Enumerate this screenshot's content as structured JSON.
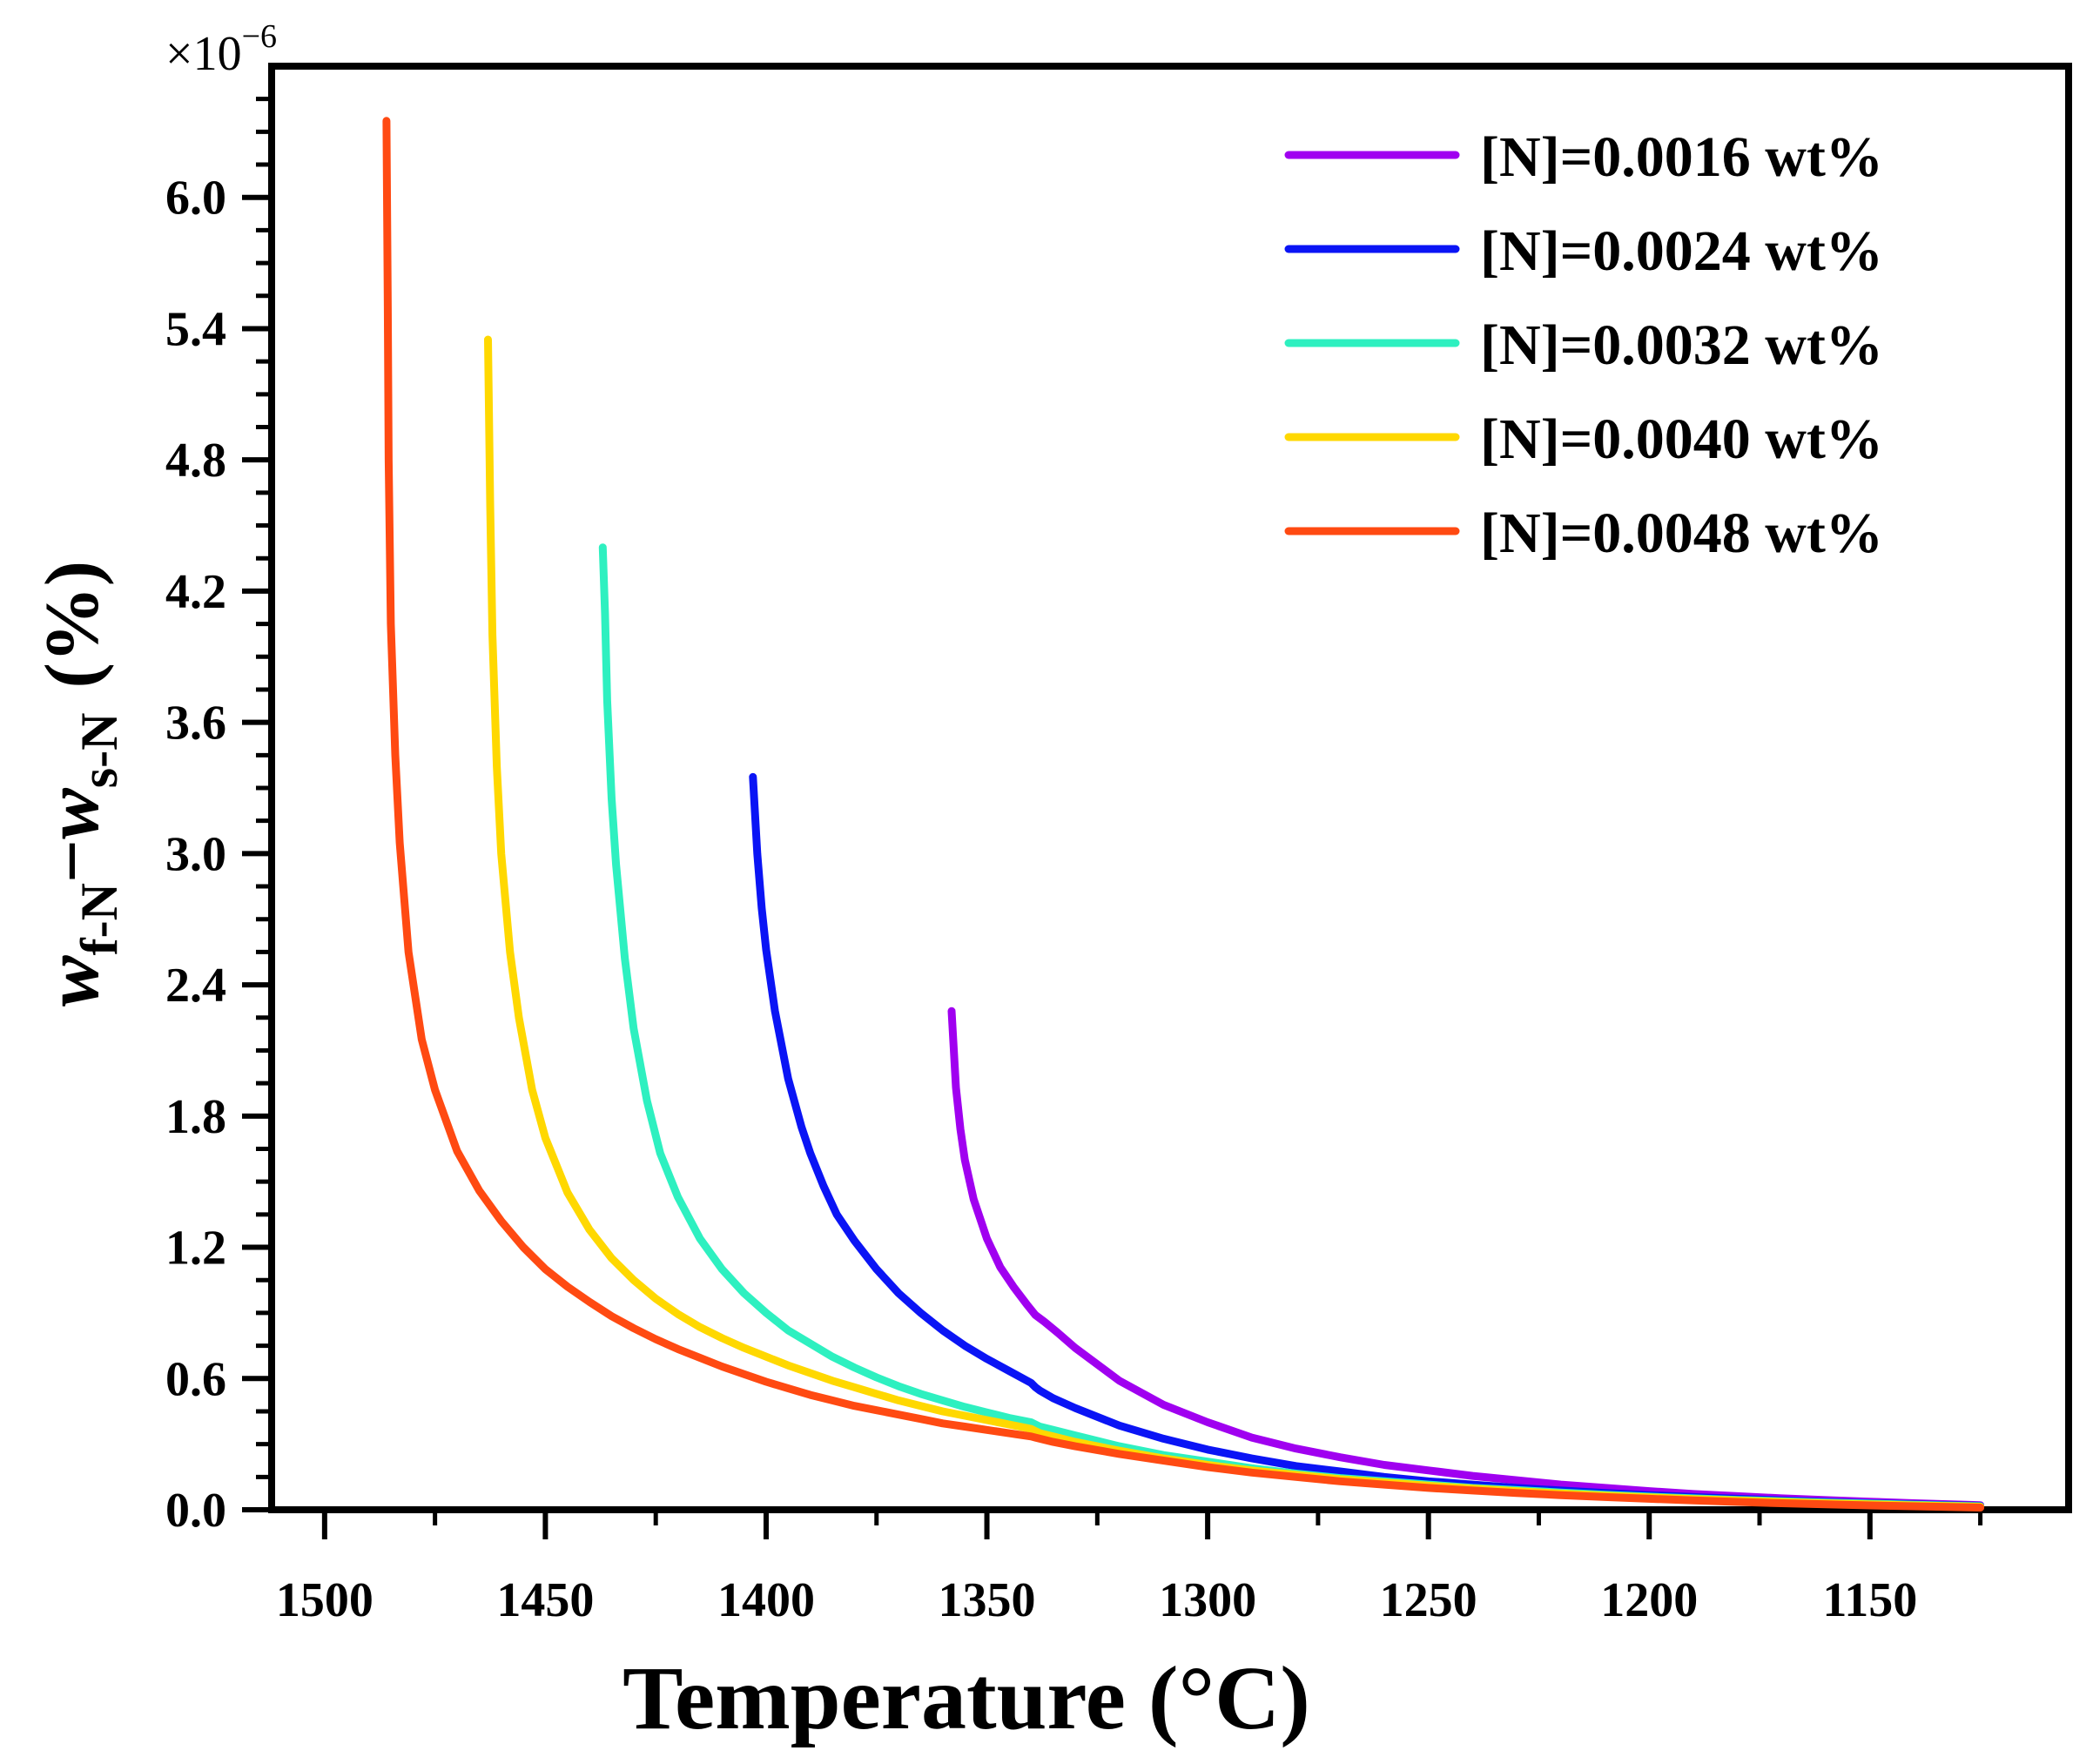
{
  "chart_data": {
    "type": "line",
    "title": "",
    "xlabel": "Temperature (°C)",
    "ylabel": {
      "var1": "w",
      "sub1": "f-N",
      "minus": "−",
      "var2": "w",
      "sub2": "s-N",
      "unit": "(%)"
    },
    "y_multiplier": {
      "base": "×10",
      "exponent": "−6"
    },
    "xlim": [
      1512,
      1105
    ],
    "ylim": [
      0,
      6.6
    ],
    "x_ticks": [
      1500,
      1450,
      1400,
      1350,
      1300,
      1250,
      1200,
      1150
    ],
    "x_tick_labels": [
      "1500",
      "1450",
      "1400",
      "1350",
      "1300",
      "1250",
      "1200",
      "1150"
    ],
    "y_ticks": [
      0,
      0.6,
      1.2,
      1.8,
      2.4,
      3.0,
      3.6,
      4.2,
      4.8,
      5.4,
      6.0
    ],
    "y_tick_labels": [
      "0.0",
      "0.6",
      "1.2",
      "1.8",
      "2.4",
      "3.0",
      "3.6",
      "4.2",
      "4.8",
      "5.4",
      "6.0"
    ],
    "legend_position": "top-right",
    "series": [
      {
        "name": "[N]=0.0016 wt%",
        "color": "#A000F0",
        "x": [
          1358,
          1357,
          1356,
          1355,
          1353,
          1350,
          1347,
          1344,
          1341,
          1339,
          1337,
          1334,
          1330,
          1320,
          1310,
          1300,
          1290,
          1280,
          1270,
          1260,
          1250,
          1240,
          1230,
          1220,
          1210,
          1200,
          1190,
          1180,
          1170,
          1160,
          1150,
          1140,
          1130,
          1125
        ],
        "y": [
          2.28,
          1.93,
          1.74,
          1.6,
          1.42,
          1.24,
          1.11,
          1.02,
          0.94,
          0.89,
          0.86,
          0.81,
          0.74,
          0.59,
          0.48,
          0.4,
          0.33,
          0.28,
          0.24,
          0.205,
          0.18,
          0.155,
          0.135,
          0.115,
          0.1,
          0.085,
          0.072,
          0.062,
          0.052,
          0.044,
          0.037,
          0.03,
          0.024,
          0.021
        ]
      },
      {
        "name": "[N]=0.0024 wt%",
        "color": "#0A14F5",
        "x": [
          1403,
          1402,
          1401,
          1400,
          1398,
          1395,
          1392,
          1390,
          1387,
          1384,
          1380,
          1375,
          1370,
          1365,
          1360,
          1355,
          1350,
          1345,
          1340,
          1339,
          1338,
          1335,
          1330,
          1320,
          1310,
          1300,
          1290,
          1280,
          1270,
          1260,
          1250,
          1240,
          1230,
          1220,
          1210,
          1200,
          1190,
          1180,
          1170,
          1160,
          1150,
          1140,
          1130,
          1125
        ],
        "y": [
          3.35,
          3.0,
          2.75,
          2.56,
          2.28,
          1.97,
          1.75,
          1.63,
          1.48,
          1.35,
          1.23,
          1.1,
          0.99,
          0.9,
          0.82,
          0.75,
          0.69,
          0.635,
          0.58,
          0.56,
          0.545,
          0.51,
          0.465,
          0.385,
          0.325,
          0.275,
          0.235,
          0.2,
          0.175,
          0.15,
          0.13,
          0.115,
          0.1,
          0.088,
          0.077,
          0.067,
          0.058,
          0.05,
          0.043,
          0.036,
          0.03,
          0.025,
          0.02,
          0.018
        ]
      },
      {
        "name": "[N]=0.0032 wt%",
        "color": "#2EF0C0",
        "x": [
          1437,
          1436.5,
          1436,
          1435,
          1434,
          1432,
          1430,
          1427,
          1424,
          1420,
          1415,
          1410,
          1405,
          1400,
          1395,
          1390,
          1385,
          1380,
          1375,
          1370,
          1365,
          1360,
          1355,
          1350,
          1345,
          1340,
          1339,
          1338,
          1335,
          1330,
          1320,
          1310,
          1300,
          1290,
          1280,
          1270,
          1260,
          1250,
          1240,
          1230,
          1220,
          1210,
          1200,
          1190,
          1180,
          1170,
          1160,
          1150,
          1140,
          1130,
          1125
        ],
        "y": [
          4.4,
          4.1,
          3.7,
          3.25,
          2.95,
          2.52,
          2.2,
          1.87,
          1.63,
          1.43,
          1.24,
          1.1,
          0.99,
          0.9,
          0.82,
          0.76,
          0.7,
          0.65,
          0.605,
          0.565,
          0.53,
          0.5,
          0.47,
          0.445,
          0.42,
          0.4,
          0.39,
          0.38,
          0.365,
          0.34,
          0.29,
          0.25,
          0.22,
          0.19,
          0.165,
          0.145,
          0.13,
          0.115,
          0.1,
          0.09,
          0.079,
          0.069,
          0.06,
          0.052,
          0.045,
          0.039,
          0.033,
          0.028,
          0.023,
          0.018,
          0.016
        ]
      },
      {
        "name": "[N]=0.0040 wt%",
        "color": "#FFD800",
        "x": [
          1463,
          1462.5,
          1462,
          1461,
          1460,
          1458,
          1456,
          1453,
          1450,
          1445,
          1440,
          1435,
          1430,
          1425,
          1420,
          1415,
          1410,
          1405,
          1400,
          1395,
          1390,
          1385,
          1380,
          1375,
          1370,
          1365,
          1360,
          1355,
          1350,
          1345,
          1340,
          1339,
          1338,
          1335,
          1330,
          1320,
          1310,
          1300,
          1290,
          1280,
          1270,
          1260,
          1250,
          1240,
          1230,
          1220,
          1210,
          1200,
          1190,
          1180,
          1170,
          1160,
          1150,
          1140,
          1130,
          1125
        ],
        "y": [
          5.35,
          4.6,
          4.0,
          3.4,
          3.0,
          2.55,
          2.25,
          1.92,
          1.7,
          1.45,
          1.28,
          1.15,
          1.05,
          0.965,
          0.895,
          0.835,
          0.785,
          0.74,
          0.7,
          0.66,
          0.625,
          0.59,
          0.56,
          0.53,
          0.5,
          0.475,
          0.45,
          0.43,
          0.41,
          0.39,
          0.37,
          0.36,
          0.35,
          0.335,
          0.31,
          0.27,
          0.235,
          0.205,
          0.18,
          0.16,
          0.14,
          0.125,
          0.11,
          0.097,
          0.085,
          0.074,
          0.065,
          0.057,
          0.049,
          0.042,
          0.036,
          0.03,
          0.025,
          0.02,
          0.016,
          0.014
        ]
      },
      {
        "name": "[N]=0.0048 wt%",
        "color": "#FF4A12",
        "x": [
          1486,
          1485.7,
          1485.5,
          1485,
          1484,
          1483,
          1481,
          1478,
          1475,
          1470,
          1465,
          1460,
          1455,
          1450,
          1445,
          1440,
          1435,
          1430,
          1425,
          1420,
          1415,
          1410,
          1405,
          1400,
          1395,
          1390,
          1385,
          1380,
          1375,
          1370,
          1365,
          1360,
          1355,
          1350,
          1345,
          1340,
          1339,
          1338,
          1335,
          1330,
          1320,
          1310,
          1300,
          1290,
          1280,
          1270,
          1260,
          1250,
          1240,
          1230,
          1220,
          1210,
          1200,
          1190,
          1180,
          1170,
          1160,
          1150,
          1140,
          1130,
          1125
        ],
        "y": [
          6.35,
          5.5,
          4.8,
          4.05,
          3.45,
          3.05,
          2.55,
          2.15,
          1.92,
          1.64,
          1.46,
          1.32,
          1.2,
          1.1,
          1.02,
          0.95,
          0.885,
          0.83,
          0.78,
          0.735,
          0.695,
          0.655,
          0.62,
          0.585,
          0.555,
          0.525,
          0.5,
          0.475,
          0.455,
          0.435,
          0.415,
          0.395,
          0.38,
          0.365,
          0.35,
          0.335,
          0.33,
          0.325,
          0.31,
          0.29,
          0.255,
          0.225,
          0.195,
          0.17,
          0.15,
          0.13,
          0.115,
          0.1,
          0.088,
          0.077,
          0.067,
          0.058,
          0.05,
          0.043,
          0.036,
          0.03,
          0.025,
          0.02,
          0.016,
          0.012,
          0.01
        ]
      }
    ]
  }
}
